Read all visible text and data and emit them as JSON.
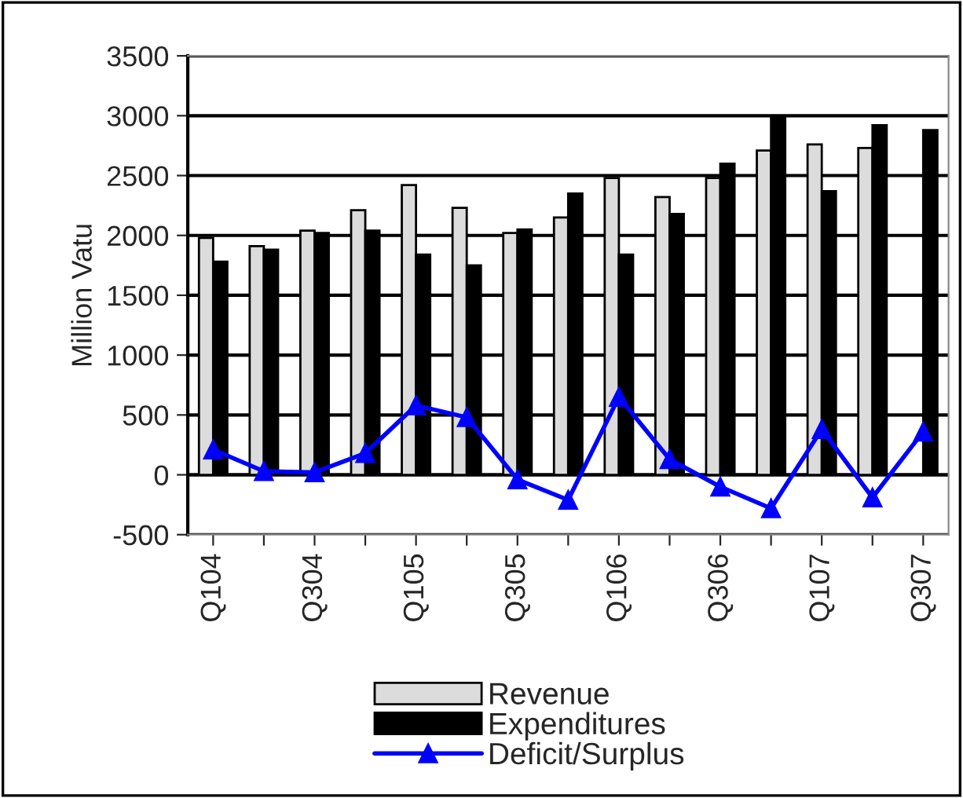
{
  "chart_data": {
    "type": "bar",
    "ylabel": "Million Vatu",
    "categories": [
      "Q104",
      null,
      "Q304",
      null,
      "Q105",
      null,
      "Q305",
      null,
      "Q106",
      null,
      "Q306",
      null,
      "Q107",
      null,
      "Q307"
    ],
    "series": [
      {
        "name": "Revenue",
        "color": "#dcdcdc",
        "values": [
          1980,
          1910,
          2040,
          2210,
          2420,
          2230,
          2020,
          2150,
          2480,
          2320,
          2480,
          2710,
          2760,
          2730,
          null
        ]
      },
      {
        "name": "Expenditures",
        "color": "#000000",
        "values": [
          1780,
          1880,
          2020,
          2040,
          1840,
          1750,
          2050,
          2350,
          1840,
          2180,
          2600,
          3000,
          2370,
          2920,
          2880
        ]
      },
      {
        "name": "Deficit/Surplus",
        "type": "line",
        "color": "#0000ff",
        "marker": "triangle",
        "values": [
          210,
          30,
          20,
          180,
          580,
          480,
          -40,
          -210,
          650,
          130,
          -100,
          -280,
          380,
          -190,
          360
        ]
      }
    ],
    "ylim": [
      -500,
      3500
    ],
    "yticks": [
      -500,
      0,
      500,
      1000,
      1500,
      2000,
      2500,
      3000,
      3500
    ],
    "grid": "y",
    "legend": "bottom"
  }
}
